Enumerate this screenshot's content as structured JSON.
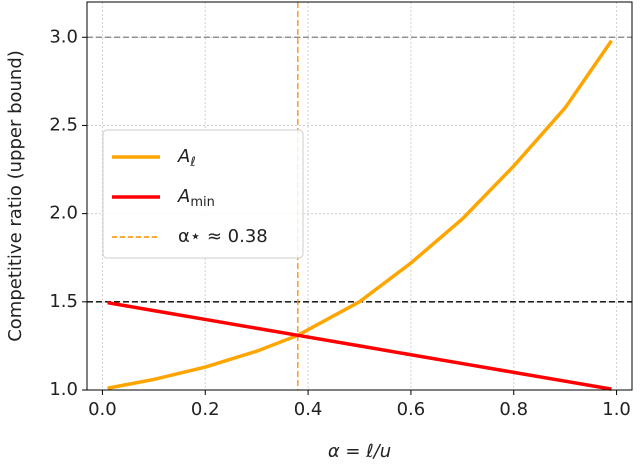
{
  "chart_data": {
    "type": "line",
    "xlabel": "α = ℓ/u",
    "ylabel": "Competitive ratio (upper bound)",
    "x": [
      0.01,
      0.1,
      0.2,
      0.3,
      0.38,
      0.5,
      0.6,
      0.7,
      0.8,
      0.9,
      0.99
    ],
    "series": [
      {
        "name": "A",
        "name_sub": "ℓ",
        "color": "#ffa500",
        "values": [
          1.01,
          1.06,
          1.13,
          1.22,
          1.31,
          1.5,
          1.72,
          1.97,
          2.27,
          2.6,
          2.98
        ]
      },
      {
        "name": "A",
        "name_sub": "min",
        "color": "#ff0000",
        "values": [
          1.495,
          1.45,
          1.4,
          1.35,
          1.31,
          1.25,
          1.2,
          1.15,
          1.1,
          1.05,
          1.005
        ]
      }
    ],
    "hlines": [
      {
        "y": 3.0,
        "color": "#808080"
      },
      {
        "y": 1.5,
        "color": "#000000"
      }
    ],
    "vline": {
      "x": 0.38,
      "color": "#ff8c00",
      "label": "α⋆ ≈ 0.38"
    },
    "xlim": [
      -0.03,
      1.03
    ],
    "ylim": [
      1.0,
      3.2
    ],
    "xticks": [
      {
        "value": 0,
        "label": "0.0"
      },
      0.2,
      0.4,
      0.6,
      0.8,
      {
        "value": 1,
        "label": "1.0"
      }
    ],
    "yticks": [
      {
        "value": 1,
        "label": "1.0"
      },
      1.5,
      {
        "value": 2,
        "label": "2.0"
      },
      2.5,
      {
        "value": 3,
        "label": "3.0"
      }
    ],
    "grid": true
  }
}
